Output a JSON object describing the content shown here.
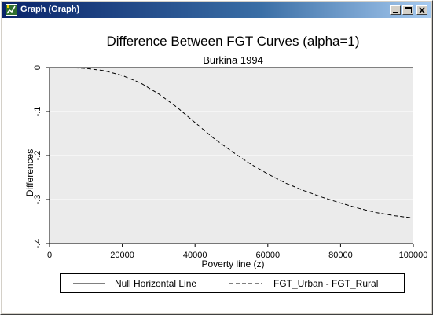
{
  "window": {
    "title": "Graph (Graph)"
  },
  "colors": {
    "titlebar_start": "#0a246a",
    "titlebar_end": "#a6caf0",
    "plot_background": "#ebebeb",
    "chart_background": "#ffffff"
  },
  "chart_data": {
    "type": "line",
    "title": "Difference Between FGT Curves (alpha=1)",
    "subtitle": "Burkina 1994",
    "xlabel": "Poverty line (z)",
    "ylabel": "Differences",
    "xlim": [
      0,
      100000
    ],
    "ylim": [
      -0.4,
      0
    ],
    "xticks": [
      0,
      20000,
      40000,
      60000,
      80000,
      100000
    ],
    "xtick_labels": [
      "0",
      "20000",
      "40000",
      "60000",
      "80000",
      "100000"
    ],
    "yticks": [
      0,
      -0.1,
      -0.2,
      -0.3,
      -0.4
    ],
    "ytick_labels": [
      "0",
      "-.1",
      "-.2",
      "-.3",
      "-.4"
    ],
    "grid": "horizontal",
    "legend_position": "bottom",
    "series": [
      {
        "name": "Null Horizontal Line",
        "style": "solid",
        "x": [
          0,
          100000
        ],
        "values": [
          0,
          0
        ]
      },
      {
        "name": "FGT_Urban - FGT_Rural",
        "style": "dashed",
        "x": [
          0,
          5000,
          10000,
          15000,
          20000,
          25000,
          30000,
          35000,
          40000,
          45000,
          50000,
          55000,
          60000,
          65000,
          70000,
          75000,
          80000,
          85000,
          90000,
          95000,
          100000
        ],
        "values": [
          0,
          0,
          -0.002,
          -0.007,
          -0.018,
          -0.035,
          -0.06,
          -0.09,
          -0.125,
          -0.16,
          -0.19,
          -0.218,
          -0.242,
          -0.263,
          -0.28,
          -0.295,
          -0.308,
          -0.32,
          -0.33,
          -0.337,
          -0.342
        ]
      }
    ]
  },
  "icons": {
    "app": "stata-graph-icon",
    "minimize": "minimize-icon",
    "maximize": "maximize-icon",
    "close": "close-icon"
  }
}
